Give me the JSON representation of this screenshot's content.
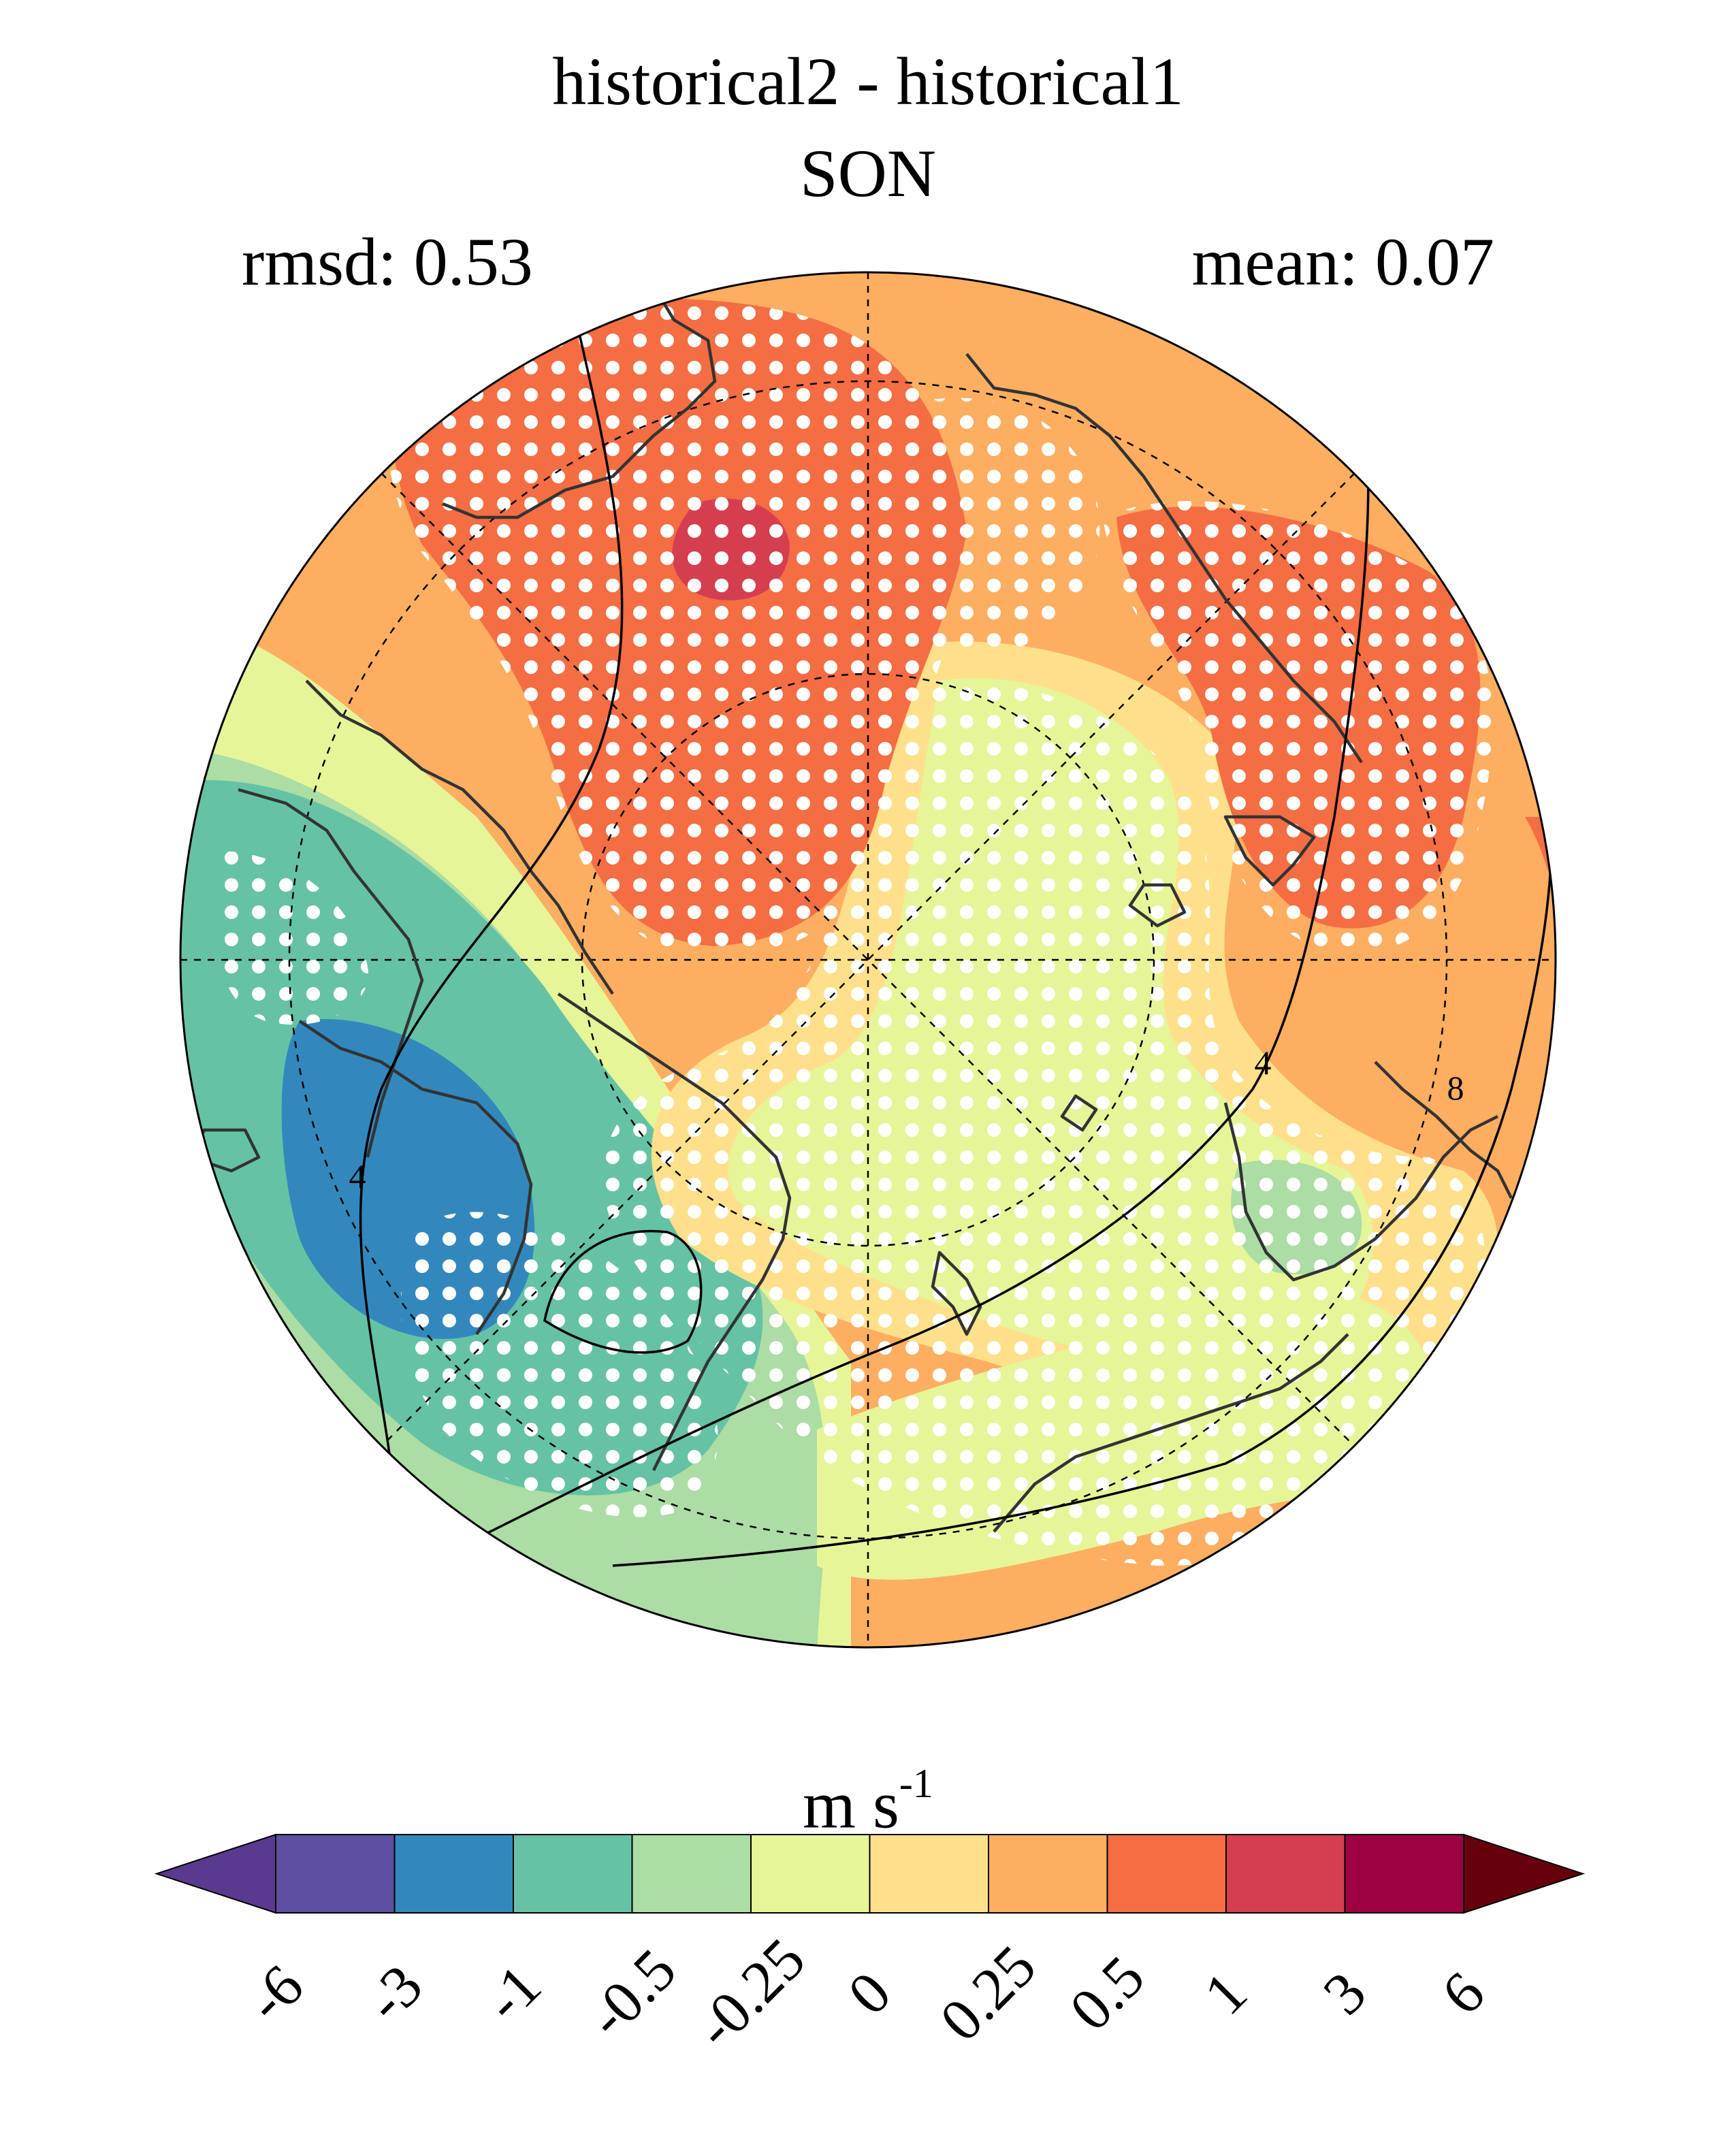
{
  "title": {
    "line1": "historical2 - historical1",
    "line2": "SON"
  },
  "stats": {
    "rmsd": "rmsd: 0.53",
    "mean": "mean: 0.07"
  },
  "units": {
    "base": "m s",
    "exponent": "-1"
  },
  "contour_labels": [
    "4",
    "4",
    "8"
  ],
  "colorbar": {
    "ticks": [
      "-6",
      "-3",
      "-1",
      "-0.5",
      "-0.25",
      "0",
      "0.25",
      "0.5",
      "1",
      "3",
      "6"
    ],
    "colors": [
      "#5e4fa2",
      "#3288bd",
      "#66c2a5",
      "#abdda4",
      "#e6f598",
      "#fee08b",
      "#fdae61",
      "#f46d43",
      "#d53e4f",
      "#9e0142"
    ],
    "under_color": "#5a3a8f",
    "over_color": "#67000d"
  },
  "palette": {
    "deep_red": "#d53e4f",
    "red_orange": "#f46d43",
    "orange": "#fdae61",
    "light_yellow": "#fee08b",
    "yellow_green": "#e6f598",
    "light_green": "#abdda4",
    "teal": "#66c2a5",
    "blue": "#3288bd"
  }
}
